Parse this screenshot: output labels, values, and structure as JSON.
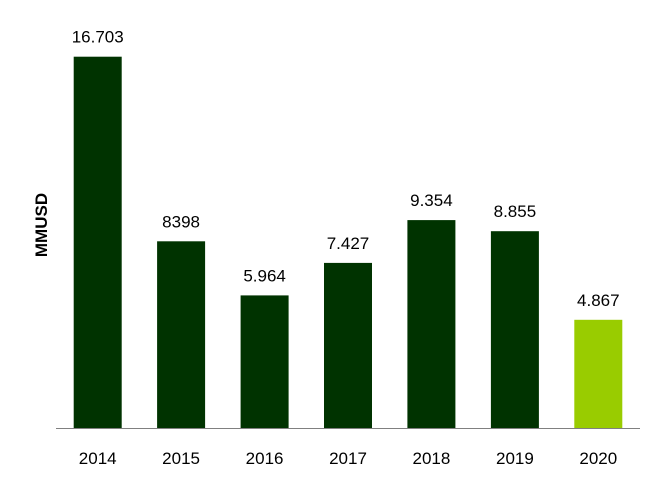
{
  "chart_data": {
    "type": "bar",
    "title": "",
    "xlabel": "",
    "ylabel": "MMUSD",
    "categories": [
      "2014",
      "2015",
      "2016",
      "2017",
      "2018",
      "2019",
      "2020"
    ],
    "values": [
      16703,
      8398,
      5964,
      7427,
      9354,
      8855,
      4867
    ],
    "data_labels": [
      "16.703",
      "8398",
      "5.964",
      "7.427",
      "9.354",
      "8.855",
      "4.867"
    ],
    "ylim": [
      0,
      17500
    ],
    "grid": false,
    "legend": "none",
    "colors": {
      "bar": "#003300",
      "highlight_bar": "#99cc00",
      "axis": "#808080"
    },
    "highlight_index": 6
  }
}
